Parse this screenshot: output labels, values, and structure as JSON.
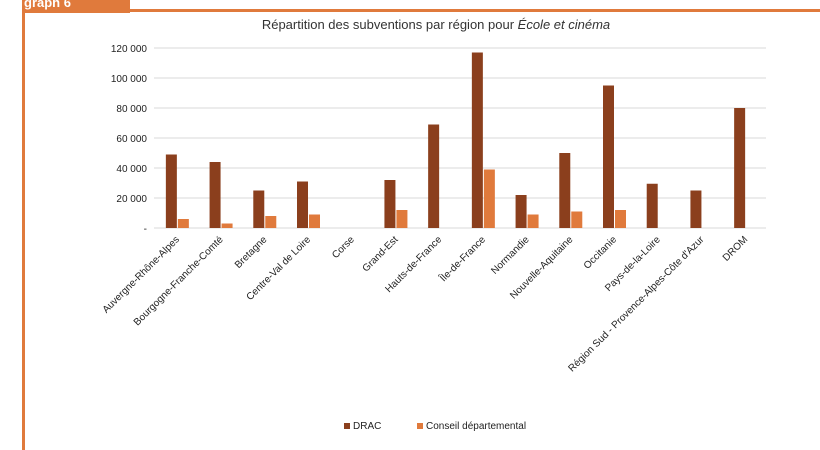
{
  "header": {
    "tab_label": "graph 6"
  },
  "colors": {
    "accent": "#E07A3C",
    "drac": "#8B3F1D",
    "conseil": "#E07A3C",
    "grid": "#D9D9D9"
  },
  "chart_data": {
    "type": "bar",
    "title_prefix": "Répartition des subventions par région pour ",
    "title_italic": "École et cinéma",
    "categories": [
      "Auvergne-Rhône-Alpes",
      "Bourgogne-Franche-Comté",
      "Bretagne",
      "Centre-Val de Loire",
      "Corse",
      "Grand-Est",
      "Hauts-de-France",
      "Île-de-France",
      "Normandie",
      "Nouvelle-Aquitaine",
      "Occitanie",
      "Pays-de-la-Loire",
      "Région Sud - Provence-Alpes-Côte d'Azur",
      "DROM"
    ],
    "series": [
      {
        "name": "DRAC",
        "values": [
          49000,
          44000,
          25000,
          31000,
          0,
          32000,
          69000,
          117000,
          22000,
          50000,
          95000,
          29500,
          25000,
          80000
        ]
      },
      {
        "name": "Conseil départemental",
        "values": [
          6000,
          3000,
          8000,
          9000,
          0,
          12000,
          0,
          39000,
          9000,
          11000,
          12000,
          0,
          0,
          0
        ]
      }
    ],
    "ylim": [
      0,
      120000
    ],
    "yticks": [
      {
        "value": 0,
        "label": "-"
      },
      {
        "value": 20000,
        "label": "20 000"
      },
      {
        "value": 40000,
        "label": "40 000"
      },
      {
        "value": 60000,
        "label": "60 000"
      },
      {
        "value": 80000,
        "label": "80 000"
      },
      {
        "value": 100000,
        "label": "100 000"
      },
      {
        "value": 120000,
        "label": "120 000"
      }
    ],
    "grid": true,
    "legend_position": "bottom"
  }
}
